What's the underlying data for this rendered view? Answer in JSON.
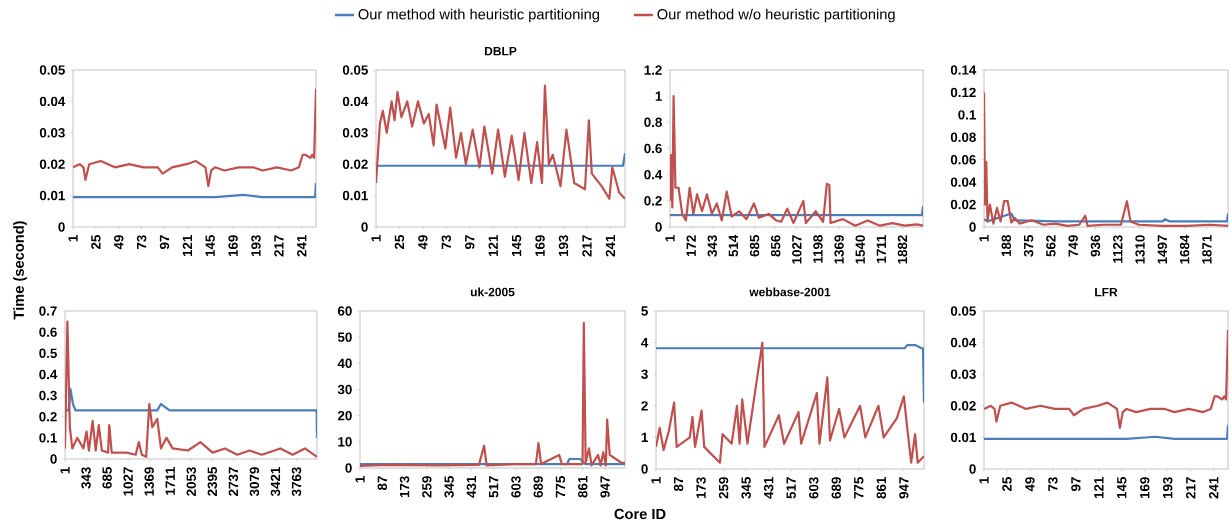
{
  "chart_data": [
    {
      "type": "line",
      "legend": "top",
      "xlim": [
        1,
        256
      ],
      "xticks": [
        1,
        25,
        49,
        73,
        97,
        121,
        145,
        169,
        193,
        217,
        241
      ],
      "ylim": [
        0,
        0.05
      ],
      "yticks": [
        0,
        0.01,
        0.02,
        0.03,
        0.04,
        0.05
      ],
      "series": [
        {
          "name": "Our method with heuristic partitioning",
          "color": "#4a7ebb",
          "x": [
            1,
            50,
            100,
            150,
            180,
            200,
            240,
            255,
            256
          ],
          "values": [
            0.0095,
            0.0095,
            0.0095,
            0.0095,
            0.0102,
            0.0095,
            0.0095,
            0.0095,
            0.014
          ]
        },
        {
          "name": "Our method w/o heuristic partitioning",
          "color": "#c0504d",
          "x": [
            1,
            8,
            12,
            14,
            18,
            30,
            45,
            60,
            75,
            90,
            95,
            105,
            120,
            130,
            140,
            143,
            146,
            150,
            160,
            175,
            190,
            200,
            215,
            230,
            238,
            242,
            245,
            250,
            252,
            254,
            256
          ],
          "values": [
            0.019,
            0.02,
            0.019,
            0.015,
            0.02,
            0.021,
            0.019,
            0.02,
            0.019,
            0.019,
            0.017,
            0.019,
            0.02,
            0.021,
            0.019,
            0.013,
            0.018,
            0.019,
            0.018,
            0.019,
            0.019,
            0.018,
            0.019,
            0.018,
            0.019,
            0.023,
            0.023,
            0.022,
            0.023,
            0.022,
            0.044
          ]
        }
      ]
    },
    {
      "type": "line",
      "title": "DBLP",
      "xlim": [
        1,
        256
      ],
      "xticks": [
        1,
        25,
        49,
        73,
        97,
        121,
        145,
        169,
        193,
        217,
        241
      ],
      "ylim": [
        0,
        0.05
      ],
      "yticks": [
        0,
        0.01,
        0.02,
        0.03,
        0.04,
        0.05
      ],
      "series": [
        {
          "color": "#4a7ebb",
          "x": [
            1,
            100,
            250,
            254,
            256
          ],
          "values": [
            0.0195,
            0.0195,
            0.0195,
            0.0195,
            0.0235
          ]
        },
        {
          "color": "#c0504d",
          "x": [
            1,
            5,
            8,
            12,
            17,
            20,
            23,
            27,
            33,
            38,
            44,
            50,
            55,
            60,
            63,
            72,
            77,
            83,
            88,
            93,
            100,
            107,
            112,
            120,
            126,
            133,
            140,
            147,
            153,
            160,
            166,
            171,
            174,
            178,
            182,
            190,
            196,
            204,
            215,
            219,
            222,
            232,
            240,
            243,
            250,
            256
          ],
          "values": [
            0.014,
            0.033,
            0.037,
            0.03,
            0.04,
            0.034,
            0.043,
            0.035,
            0.04,
            0.032,
            0.04,
            0.033,
            0.036,
            0.026,
            0.039,
            0.025,
            0.038,
            0.022,
            0.03,
            0.02,
            0.031,
            0.019,
            0.032,
            0.017,
            0.031,
            0.016,
            0.029,
            0.015,
            0.03,
            0.014,
            0.027,
            0.014,
            0.045,
            0.02,
            0.023,
            0.013,
            0.031,
            0.014,
            0.012,
            0.034,
            0.017,
            0.013,
            0.009,
            0.019,
            0.011,
            0.009
          ]
        }
      ]
    },
    {
      "type": "line",
      "xlim": [
        1,
        2048
      ],
      "xticks": [
        1,
        172,
        343,
        514,
        685,
        856,
        1027,
        1198,
        1369,
        1540,
        1711,
        1882
      ],
      "ylim": [
        0,
        1.2
      ],
      "yticks": [
        0,
        0.2,
        0.4,
        0.6,
        0.8,
        1,
        1.2
      ],
      "series": [
        {
          "color": "#4a7ebb",
          "x": [
            1,
            2040,
            2048
          ],
          "values": [
            0.09,
            0.09,
            0.16
          ]
        },
        {
          "color": "#c0504d",
          "x": [
            1,
            10,
            20,
            30,
            45,
            70,
            100,
            130,
            160,
            190,
            220,
            260,
            300,
            340,
            380,
            420,
            460,
            500,
            560,
            620,
            680,
            720,
            800,
            860,
            900,
            950,
            1000,
            1080,
            1100,
            1180,
            1240,
            1270,
            1290,
            1300,
            1400,
            1500,
            1600,
            1700,
            1800,
            1900,
            2000,
            2048
          ],
          "values": [
            0.2,
            0.55,
            0.15,
            1.0,
            0.3,
            0.3,
            0.1,
            0.05,
            0.3,
            0.1,
            0.25,
            0.12,
            0.25,
            0.1,
            0.18,
            0.05,
            0.27,
            0.08,
            0.12,
            0.06,
            0.18,
            0.07,
            0.1,
            0.05,
            0.04,
            0.14,
            0.03,
            0.2,
            0.03,
            0.12,
            0.04,
            0.33,
            0.32,
            0.03,
            0.06,
            0.01,
            0.05,
            0.01,
            0.03,
            0.01,
            0.02,
            0.01
          ]
        }
      ]
    },
    {
      "type": "line",
      "xlim": [
        1,
        2048
      ],
      "xticks": [
        1,
        188,
        375,
        562,
        749,
        936,
        1123,
        1310,
        1497,
        1684,
        1871
      ],
      "ylim": [
        0,
        0.14
      ],
      "yticks": [
        0,
        0.02,
        0.04,
        0.06,
        0.08,
        0.1,
        0.12,
        0.14
      ],
      "series": [
        {
          "color": "#4a7ebb",
          "x": [
            1,
            30,
            230,
            260,
            600,
            1500,
            1520,
            1560,
            2040,
            2048
          ],
          "values": [
            0.007,
            0.005,
            0.012,
            0.006,
            0.005,
            0.005,
            0.007,
            0.005,
            0.005,
            0.012
          ]
        },
        {
          "color": "#c0504d",
          "x": [
            1,
            10,
            20,
            30,
            50,
            80,
            110,
            140,
            170,
            200,
            230,
            260,
            300,
            400,
            500,
            600,
            700,
            800,
            850,
            870,
            1000,
            1150,
            1200,
            1230,
            1300,
            1500,
            1700,
            1900,
            2048
          ],
          "values": [
            0.12,
            0.02,
            0.058,
            0.005,
            0.02,
            0.003,
            0.017,
            0.005,
            0.023,
            0.023,
            0.004,
            0.008,
            0.003,
            0.006,
            0.002,
            0.003,
            0.001,
            0.002,
            0.01,
            0.001,
            0.002,
            0.002,
            0.023,
            0.005,
            0.002,
            0.001,
            0.001,
            0.002,
            0.001
          ]
        }
      ]
    },
    {
      "type": "line",
      "ylabel": "Time (second)",
      "xlim": [
        1,
        4096
      ],
      "xticks": [
        1,
        343,
        685,
        1027,
        1369,
        1711,
        2053,
        2395,
        2737,
        3079,
        3421,
        3763
      ],
      "ylim": [
        0,
        0.7
      ],
      "yticks": [
        0,
        0.1,
        0.2,
        0.3,
        0.4,
        0.5,
        0.6,
        0.7
      ],
      "series": [
        {
          "color": "#4a7ebb",
          "x": [
            1,
            60,
            90,
            130,
            170,
            1500,
            1560,
            1700,
            4090,
            4096
          ],
          "values": [
            0.23,
            0.23,
            0.33,
            0.26,
            0.23,
            0.23,
            0.26,
            0.23,
            0.23,
            0.1
          ]
        },
        {
          "color": "#c0504d",
          "x": [
            1,
            40,
            80,
            120,
            200,
            300,
            350,
            390,
            450,
            500,
            550,
            600,
            700,
            720,
            760,
            1000,
            1150,
            1200,
            1250,
            1320,
            1370,
            1420,
            1500,
            1560,
            1650,
            1750,
            2000,
            2200,
            2400,
            2600,
            2800,
            3000,
            3200,
            3500,
            3700,
            3900,
            4096
          ],
          "values": [
            0.05,
            0.65,
            0.15,
            0.05,
            0.1,
            0.05,
            0.13,
            0.04,
            0.18,
            0.04,
            0.16,
            0.04,
            0.03,
            0.16,
            0.03,
            0.03,
            0.02,
            0.08,
            0.02,
            0.01,
            0.26,
            0.15,
            0.19,
            0.05,
            0.1,
            0.05,
            0.04,
            0.08,
            0.03,
            0.05,
            0.02,
            0.04,
            0.02,
            0.05,
            0.02,
            0.05,
            0.01
          ]
        }
      ]
    },
    {
      "type": "line",
      "title": "uk-2005",
      "xlabel": "Core ID",
      "xlim": [
        1,
        1024
      ],
      "xticks": [
        1,
        87,
        173,
        259,
        345,
        431,
        517,
        603,
        689,
        775,
        861,
        947
      ],
      "ylim": [
        0,
        60
      ],
      "yticks": [
        0,
        10,
        20,
        30,
        40,
        50,
        60
      ],
      "series": [
        {
          "color": "#4a7ebb",
          "x": [
            1,
            800,
            810,
            850,
            870,
            1024
          ],
          "values": [
            1.5,
            1.5,
            3.5,
            3.5,
            1.5,
            1.5
          ]
        },
        {
          "color": "#c0504d",
          "x": [
            1,
            100,
            300,
            460,
            480,
            490,
            600,
            680,
            690,
            700,
            770,
            780,
            860,
            865,
            872,
            885,
            895,
            920,
            930,
            940,
            950,
            955,
            965,
            1010,
            1024
          ],
          "values": [
            0.8,
            1.2,
            1.0,
            1.2,
            8.5,
            1.0,
            1.5,
            1.5,
            9.5,
            1.5,
            5,
            1.5,
            1.5,
            55.5,
            2,
            7.5,
            1,
            5,
            1,
            6,
            1,
            18.5,
            5,
            2,
            2
          ]
        }
      ]
    },
    {
      "type": "line",
      "title": "webbase-2001",
      "xlim": [
        1,
        1024
      ],
      "xticks": [
        1,
        87,
        173,
        259,
        345,
        431,
        517,
        603,
        689,
        775,
        861,
        947
      ],
      "ylim": [
        0,
        5
      ],
      "yticks": [
        0,
        1,
        2,
        3,
        4,
        5
      ],
      "series": [
        {
          "color": "#4a7ebb",
          "x": [
            1,
            950,
            960,
            990,
            1015,
            1020,
            1024
          ],
          "values": [
            3.82,
            3.82,
            3.92,
            3.92,
            3.82,
            3.82,
            2.1
          ]
        },
        {
          "color": "#c0504d",
          "x": [
            1,
            15,
            30,
            50,
            70,
            80,
            130,
            140,
            150,
            175,
            185,
            245,
            255,
            290,
            310,
            320,
            330,
            350,
            407,
            415,
            470,
            490,
            545,
            555,
            615,
            625,
            655,
            665,
            700,
            720,
            780,
            800,
            850,
            870,
            920,
            947,
            960,
            975,
            990,
            1000,
            1024
          ],
          "values": [
            0.7,
            1.3,
            0.6,
            1.2,
            2.1,
            0.7,
            1.0,
            1.65,
            0.7,
            1.85,
            0.7,
            0.2,
            1.1,
            0.8,
            2.0,
            0.8,
            2.2,
            0.8,
            4.0,
            0.7,
            1.7,
            0.8,
            1.8,
            0.8,
            2.4,
            0.8,
            2.9,
            0.9,
            1.9,
            1.0,
            2.0,
            1.0,
            2.0,
            1.0,
            1.6,
            2.3,
            1.3,
            0.2,
            1.1,
            0.2,
            0.4
          ]
        }
      ]
    },
    {
      "type": "line",
      "title": "LFR",
      "xlim": [
        1,
        256
      ],
      "xticks": [
        1,
        25,
        49,
        73,
        97,
        121,
        145,
        169,
        193,
        217,
        241
      ],
      "ylim": [
        0,
        0.05
      ],
      "yticks": [
        0,
        0.01,
        0.02,
        0.03,
        0.04,
        0.05
      ],
      "series": [
        {
          "color": "#4a7ebb",
          "x": [
            1,
            50,
            100,
            150,
            180,
            200,
            240,
            255,
            256
          ],
          "values": [
            0.0095,
            0.0095,
            0.0095,
            0.0095,
            0.0102,
            0.0095,
            0.0095,
            0.0095,
            0.014
          ]
        },
        {
          "color": "#c0504d",
          "x": [
            1,
            8,
            12,
            14,
            18,
            30,
            45,
            60,
            75,
            90,
            95,
            105,
            120,
            130,
            140,
            143,
            146,
            150,
            160,
            175,
            190,
            200,
            215,
            230,
            238,
            242,
            245,
            250,
            252,
            254,
            256
          ],
          "values": [
            0.019,
            0.02,
            0.019,
            0.015,
            0.02,
            0.021,
            0.019,
            0.02,
            0.019,
            0.019,
            0.017,
            0.019,
            0.02,
            0.021,
            0.019,
            0.013,
            0.018,
            0.019,
            0.018,
            0.019,
            0.019,
            0.018,
            0.019,
            0.018,
            0.019,
            0.023,
            0.023,
            0.022,
            0.023,
            0.022,
            0.044
          ]
        }
      ]
    }
  ]
}
